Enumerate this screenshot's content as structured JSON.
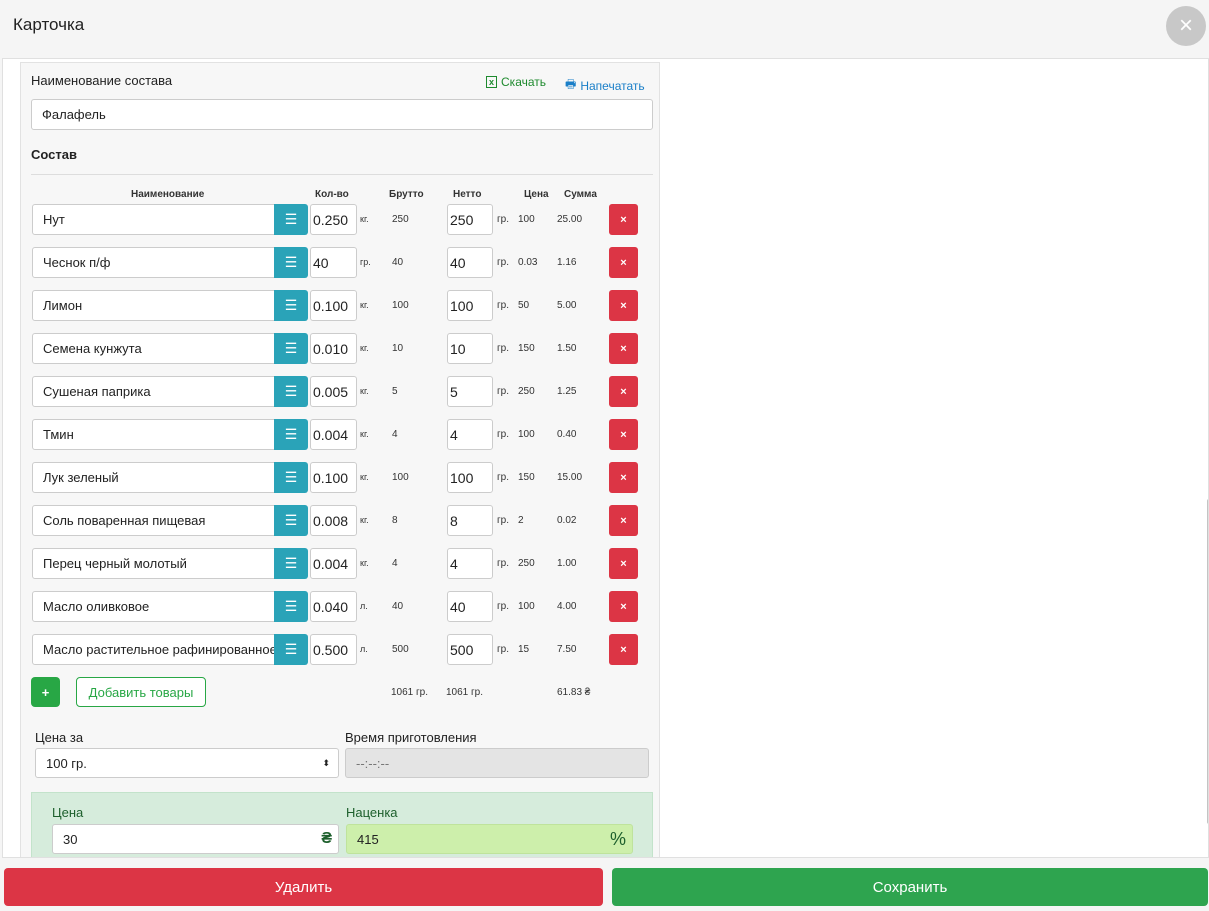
{
  "header": {
    "title": "Карточка",
    "close_icon": "close-icon"
  },
  "form": {
    "name_label": "Наименование состава",
    "download_label": "Скачать",
    "print_label": "Напечатать",
    "name_value": "Фалафель",
    "section_title": "Состав",
    "columns": [
      "Наименование",
      "Кол-во",
      "Брутто",
      "Нетто",
      "Цена",
      "Сумма"
    ],
    "items": [
      {
        "name": "Нут",
        "qty": "0.250",
        "qty_unit": "кг.",
        "brutto": "250",
        "netto": "250",
        "netto_unit": "гр.",
        "price": "100",
        "sum": "25.00"
      },
      {
        "name": "Чеснок п/ф",
        "qty": "40",
        "qty_unit": "гр.",
        "brutto": "40",
        "netto": "40",
        "netto_unit": "гр.",
        "price": "0.03",
        "sum": "1.16"
      },
      {
        "name": "Лимон",
        "qty": "0.100",
        "qty_unit": "кг.",
        "brutto": "100",
        "netto": "100",
        "netto_unit": "гр.",
        "price": "50",
        "sum": "5.00"
      },
      {
        "name": "Семена кунжута",
        "qty": "0.010",
        "qty_unit": "кг.",
        "brutto": "10",
        "netto": "10",
        "netto_unit": "гр.",
        "price": "150",
        "sum": "1.50"
      },
      {
        "name": "Сушеная паприка",
        "qty": "0.005",
        "qty_unit": "кг.",
        "brutto": "5",
        "netto": "5",
        "netto_unit": "гр.",
        "price": "250",
        "sum": "1.25"
      },
      {
        "name": "Тмин",
        "qty": "0.004",
        "qty_unit": "кг.",
        "brutto": "4",
        "netto": "4",
        "netto_unit": "гр.",
        "price": "100",
        "sum": "0.40"
      },
      {
        "name": "Лук зеленый",
        "qty": "0.100",
        "qty_unit": "кг.",
        "brutto": "100",
        "netto": "100",
        "netto_unit": "гр.",
        "price": "150",
        "sum": "15.00"
      },
      {
        "name": "Соль поваренная пищевая",
        "qty": "0.008",
        "qty_unit": "кг.",
        "brutto": "8",
        "netto": "8",
        "netto_unit": "гр.",
        "price": "2",
        "sum": "0.02"
      },
      {
        "name": "Перец черный молотый",
        "qty": "0.004",
        "qty_unit": "кг.",
        "brutto": "4",
        "netto": "4",
        "netto_unit": "гр.",
        "price": "250",
        "sum": "1.00"
      },
      {
        "name": "Масло оливковое",
        "qty": "0.040",
        "qty_unit": "л.",
        "brutto": "40",
        "netto": "40",
        "netto_unit": "гр.",
        "price": "100",
        "sum": "4.00"
      },
      {
        "name": "Масло растительное рафинированное",
        "qty": "0.500",
        "qty_unit": "л.",
        "brutto": "500",
        "netto": "500",
        "netto_unit": "гр.",
        "price": "15",
        "sum": "7.50"
      }
    ],
    "add_plus": "+",
    "add_label": "Добавить товары",
    "delete_glyph": "×",
    "total_brutto": "1061 гр.",
    "total_netto": "1061 гр.",
    "total_sum": "61.83 ₴",
    "price_for_label": "Цена за",
    "price_for_value": "100 гр.",
    "cook_time_label": "Время приготовления",
    "cook_time_value": "--:--:--",
    "price_label": "Цена",
    "price_value": "30",
    "price_currency": "₴",
    "markup_label": "Наценка",
    "markup_value": "415",
    "markup_unit": "%"
  },
  "footer": {
    "delete_label": "Удалить",
    "save_label": "Сохранить"
  },
  "colors": {
    "danger": "#dc3545",
    "success": "#28a745",
    "info": "#2aa3b8"
  }
}
